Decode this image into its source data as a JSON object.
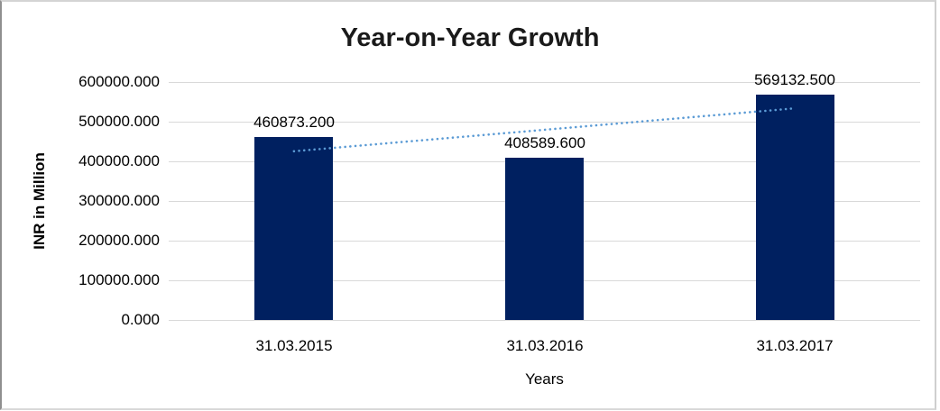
{
  "chart_data": {
    "type": "bar",
    "title": "Year-on-Year Growth",
    "categories": [
      "31.03.2015",
      "31.03.2016",
      "31.03.2017"
    ],
    "values": [
      460873.2,
      408589.6,
      569132.5
    ],
    "data_labels": [
      "460873.200",
      "408589.600",
      "569132.500"
    ],
    "xlabel": "Years",
    "ylabel": "INR in Million",
    "ylim": [
      0,
      600000
    ],
    "ytick_step": 100000,
    "ytick_labels": [
      "0.000",
      "100000.000",
      "200000.000",
      "300000.000",
      "400000.000",
      "500000.000",
      "600000.000"
    ],
    "grid": true,
    "legend": "none",
    "trendline": {
      "type": "linear",
      "style": "dotted",
      "fit_values_at_first_and_last_category": [
        425402.1,
        533661.4
      ]
    },
    "colors": {
      "bar": "#002060",
      "trendline": "#5b9bd5",
      "gridline": "#d9d9d9",
      "title_text": "#1a1a1a",
      "axis_text": "#000000",
      "background": "#ffffff"
    }
  }
}
